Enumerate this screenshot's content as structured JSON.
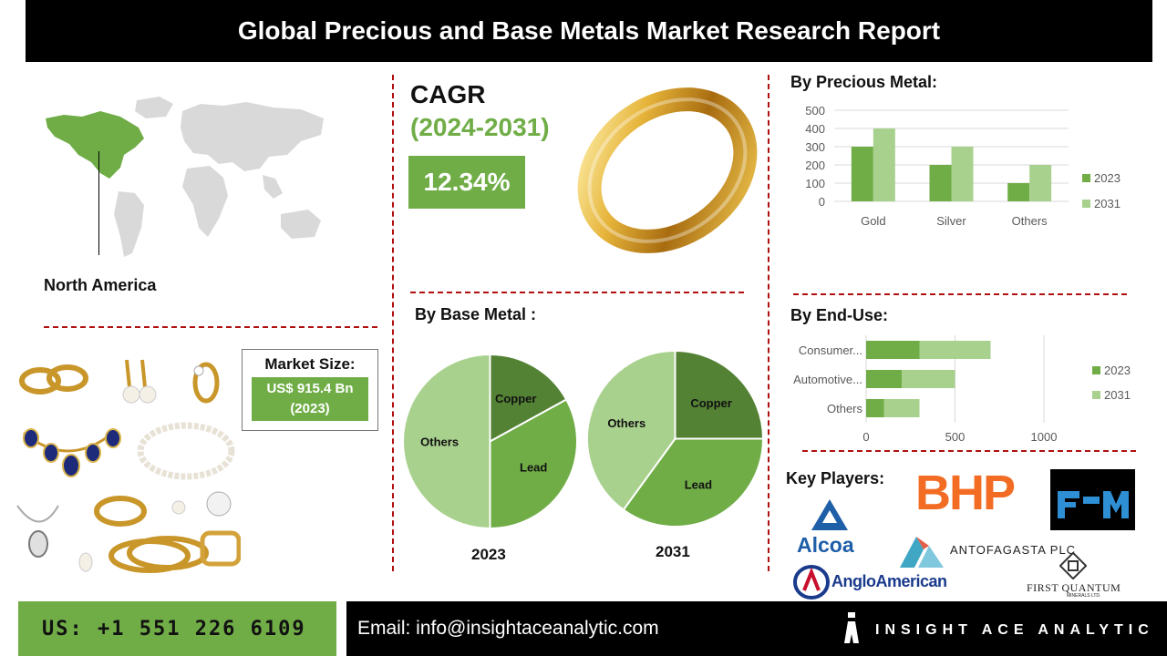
{
  "header": {
    "title": "Global Precious and Base Metals Market Research Report"
  },
  "region": {
    "label": "North America"
  },
  "cagr": {
    "title": "CAGR",
    "range": "(2024-2031)",
    "value": "12.34%"
  },
  "market_size": {
    "title": "Market Size:",
    "value": "US$ 915.4 Bn",
    "year": "(2023)"
  },
  "key_players": {
    "title": "Key Players:",
    "logos": {
      "bhp": "BHP",
      "alcoa": "Alcoa",
      "antofagasta": "ANTOFAGASTA PLC",
      "anglo": "AngloAmerican",
      "first_quantum": "FIRST QUANTUM",
      "first_quantum_sub": "MINERALS LTD."
    }
  },
  "footer": {
    "phone": "US: +1 551 226 6109",
    "email": "Email: info@insightaceanalytic.com",
    "brand": "INSIGHT ACE ANALYTIC"
  },
  "colors": {
    "dark_green": "#70ad47",
    "light_green": "#a9d18e",
    "pie_dark": "#548235",
    "pie_mid": "#70ad47",
    "pie_light": "#a9d18e",
    "accent_red": "#b01010"
  },
  "chart_data": [
    {
      "type": "bar",
      "title": "By Precious Metal:",
      "categories": [
        "Gold",
        "Silver",
        "Others"
      ],
      "series": [
        {
          "name": "2023",
          "values": [
            300,
            200,
            100
          ]
        },
        {
          "name": "2031",
          "values": [
            400,
            300,
            200
          ]
        }
      ],
      "ylim": [
        0,
        500
      ],
      "yticks": [
        0,
        100,
        200,
        300,
        400,
        500
      ],
      "grid": true,
      "legend": "right"
    },
    {
      "type": "pie",
      "title": "By Base Metal :",
      "subtitle": "2023",
      "slices": [
        {
          "label": "Copper",
          "value": 17
        },
        {
          "label": "Lead",
          "value": 33
        },
        {
          "label": "Others",
          "value": 50
        }
      ]
    },
    {
      "type": "pie",
      "subtitle": "2031",
      "slices": [
        {
          "label": "Copper",
          "value": 25
        },
        {
          "label": "Lead",
          "value": 35
        },
        {
          "label": "Others",
          "value": 40
        }
      ]
    },
    {
      "type": "bar",
      "orientation": "horizontal",
      "stacked": true,
      "title": "By End-Use:",
      "categories": [
        "Consumer...",
        "Automotive...",
        "Others"
      ],
      "series": [
        {
          "name": "2023",
          "values": [
            300,
            200,
            100
          ]
        },
        {
          "name": "2031",
          "values": [
            400,
            300,
            200
          ]
        }
      ],
      "xlim": [
        0,
        1000
      ],
      "xticks": [
        0,
        500,
        1000
      ],
      "legend": "right"
    }
  ]
}
